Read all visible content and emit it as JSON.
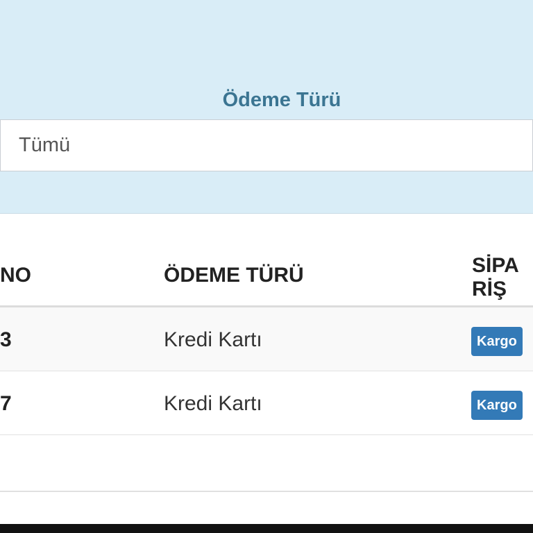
{
  "filter": {
    "label": "Ödeme Türü",
    "value": "Tümü"
  },
  "table": {
    "headers": [
      "NO",
      "ÖDEME TÜRÜ",
      "SİPARİŞ"
    ],
    "rows": [
      {
        "no": "3",
        "payment": "Kredi Kartı",
        "status": "Kargo"
      },
      {
        "no": "7",
        "payment": "Kredi Kartı",
        "status": "Kargo"
      }
    ]
  },
  "colors": {
    "panel": "#d9edf7",
    "label": "#3b7592",
    "badge": "#337ab7"
  }
}
